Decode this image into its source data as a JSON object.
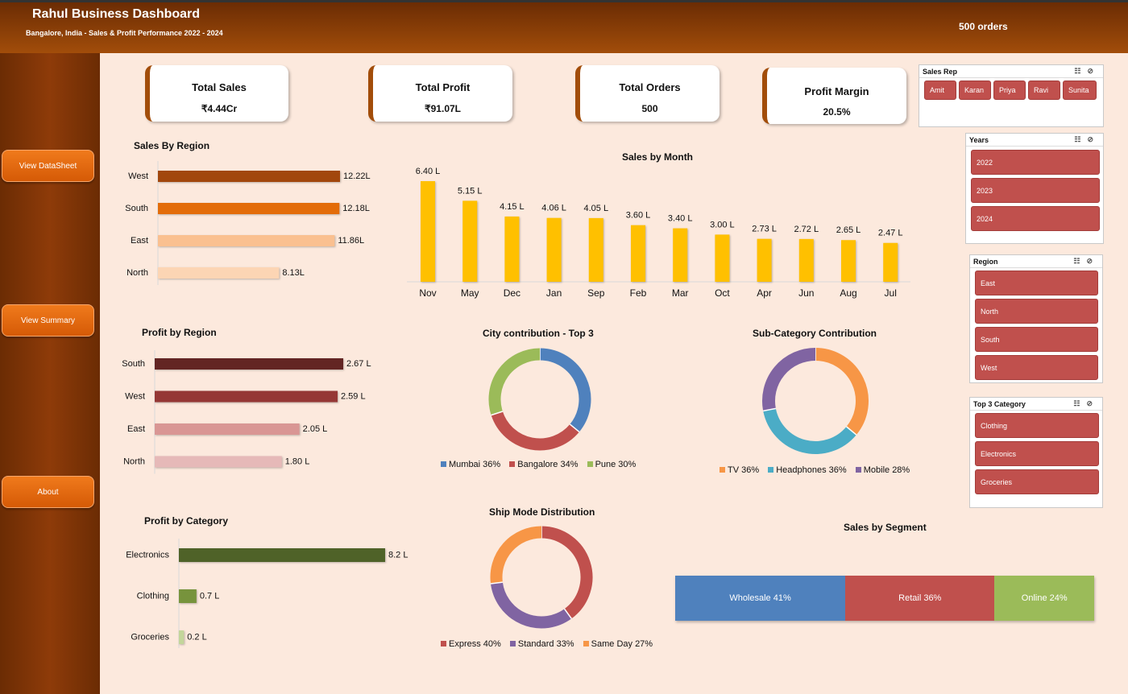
{
  "header": {
    "title": "Rahul Business Dashboard",
    "subtitle": "Bangalore, India - Sales & Profit Performance 2022 - 2024",
    "orders": "500 orders"
  },
  "sidebar": {
    "buttons": [
      "View DataSheet",
      "View Summary",
      "About"
    ]
  },
  "kpis": [
    {
      "label": "Total Sales",
      "value": "₹4.44Cr"
    },
    {
      "label": "Total Profit",
      "value": "₹91.07L"
    },
    {
      "label": "Total Orders",
      "value": "500"
    },
    {
      "label": "Profit Margin",
      "value": "20.5%"
    }
  ],
  "slicers": {
    "sales_rep": {
      "title": "Sales Rep",
      "items": [
        "Amit",
        "Karan",
        "Priya",
        "Ravi",
        "Sunita"
      ]
    },
    "years": {
      "title": "Years",
      "items": [
        "2022",
        "2023",
        "2024"
      ]
    },
    "region": {
      "title": "Region",
      "items": [
        "East",
        "North",
        "South",
        "West"
      ]
    },
    "top3_category": {
      "title": "Top 3 Category",
      "items": [
        "Clothing",
        "Electronics",
        "Groceries"
      ]
    },
    "icons": [
      "multi-select-icon",
      "clear-filter-icon"
    ]
  },
  "chart_data": [
    {
      "id": "sales_by_region",
      "type": "bar",
      "orientation": "horizontal",
      "title": "Sales By Region",
      "categories": [
        "West",
        "South",
        "East",
        "North"
      ],
      "values": [
        12.22,
        12.18,
        11.86,
        8.13
      ],
      "labels": [
        "12.22L",
        "12.18L",
        "11.86L",
        "8.13L"
      ],
      "colors": [
        "#a2470d",
        "#e36c09",
        "#fac090",
        "#fcd5b4"
      ],
      "xlim": [
        0,
        12.22
      ]
    },
    {
      "id": "sales_by_month",
      "type": "bar",
      "title": "Sales by Month",
      "categories": [
        "Nov",
        "May",
        "Dec",
        "Jan",
        "Sep",
        "Feb",
        "Mar",
        "Oct",
        "Apr",
        "Jun",
        "Aug",
        "Jul"
      ],
      "values": [
        6.4,
        5.15,
        4.15,
        4.06,
        4.05,
        3.6,
        3.4,
        3.0,
        2.73,
        2.72,
        2.65,
        2.47
      ],
      "labels": [
        "6.40 L",
        "5.15 L",
        "4.15 L",
        "4.06 L",
        "4.05 L",
        "3.60 L",
        "3.40 L",
        "3.00 L",
        "2.73 L",
        "2.72 L",
        "2.65 L",
        "2.47 L"
      ],
      "color": "#ffc000",
      "ylim": [
        0,
        6.4
      ]
    },
    {
      "id": "profit_by_region",
      "type": "bar",
      "orientation": "horizontal",
      "title": "Profit by Region",
      "categories": [
        "South",
        "West",
        "East",
        "North"
      ],
      "values": [
        2.67,
        2.59,
        2.05,
        1.8
      ],
      "labels": [
        "2.67 L",
        "2.59 L",
        "2.05 L",
        "1.80 L"
      ],
      "colors": [
        "#632523",
        "#953735",
        "#d99694",
        "#e6b9b8"
      ],
      "xlim": [
        0,
        2.67
      ]
    },
    {
      "id": "city_contribution",
      "type": "pie",
      "donut": true,
      "title": "City contribution - Top 3",
      "categories": [
        "Mumbai",
        "Bangalore",
        "Pune"
      ],
      "values": [
        36,
        34,
        30
      ],
      "legend": [
        "Mumbai 36%",
        "Bangalore 34%",
        "Pune 30%"
      ],
      "colors": [
        "#4f81bd",
        "#c0504d",
        "#9bbb59"
      ]
    },
    {
      "id": "subcategory_contribution",
      "type": "pie",
      "donut": true,
      "title": "Sub-Category Contribution",
      "categories": [
        "TV",
        "Headphones",
        "Mobile"
      ],
      "values": [
        36,
        36,
        28
      ],
      "legend": [
        "TV 36%",
        "Headphones 36%",
        "Mobile 28%"
      ],
      "colors": [
        "#f79646",
        "#4bacc6",
        "#8064a2"
      ]
    },
    {
      "id": "profit_by_category",
      "type": "bar",
      "orientation": "horizontal",
      "title": "Profit by Category",
      "categories": [
        "Electronics",
        "Clothing",
        "Groceries"
      ],
      "values": [
        8.2,
        0.7,
        0.2
      ],
      "labels": [
        "8.2 L",
        "0.7 L",
        "0.2 L"
      ],
      "colors": [
        "#4f6228",
        "#77933c",
        "#c3d69b"
      ],
      "xlim": [
        0,
        8.2
      ]
    },
    {
      "id": "ship_mode_distribution",
      "type": "pie",
      "donut": true,
      "title": "Ship Mode Distribution",
      "categories": [
        "Express",
        "Standard",
        "Same Day"
      ],
      "values": [
        40,
        33,
        27
      ],
      "legend": [
        "Express 40%",
        "Standard 33%",
        "Same Day 27%"
      ],
      "colors": [
        "#c0504d",
        "#8064a2",
        "#f79646"
      ]
    },
    {
      "id": "sales_by_segment",
      "type": "bar",
      "stacked": true,
      "title": "Sales by Segment",
      "categories": [
        "Wholesale",
        "Retail",
        "Online"
      ],
      "values": [
        41,
        36,
        24
      ],
      "labels": [
        "Wholesale 41%",
        "Retail 36%",
        "Online 24%"
      ],
      "colors": [
        "#4f81bd",
        "#c0504d",
        "#9bbb59"
      ]
    }
  ]
}
